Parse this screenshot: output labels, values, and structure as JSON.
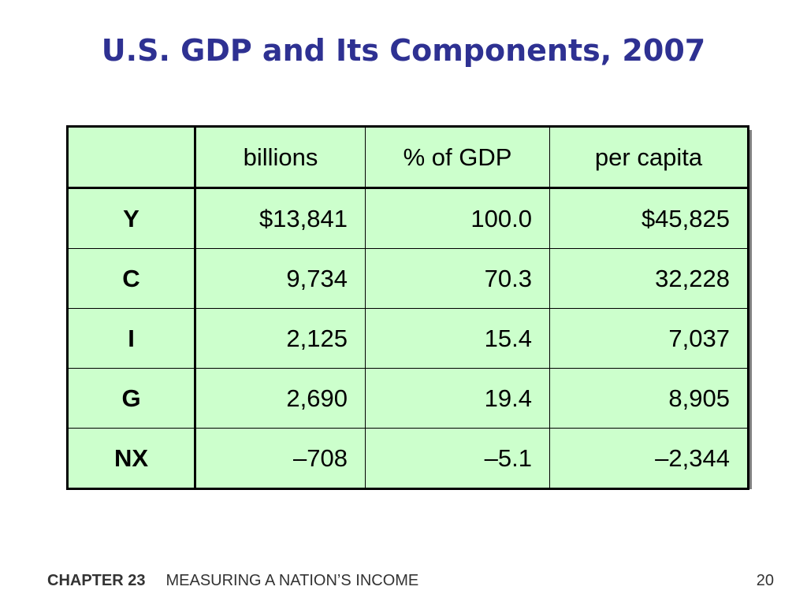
{
  "slide": {
    "title": "U.S. GDP and Its Components, 2007"
  },
  "table": {
    "headers": [
      "",
      "billions",
      "% of GDP",
      "per capita"
    ],
    "rows": [
      {
        "label": "Y",
        "billions": "$13,841",
        "pct": "100.0",
        "per_capita": "$45,825"
      },
      {
        "label": "C",
        "billions": "9,734",
        "pct": "70.3",
        "per_capita": "32,228"
      },
      {
        "label": "I",
        "billions": "2,125",
        "pct": "15.4",
        "per_capita": "7,037"
      },
      {
        "label": "G",
        "billions": "2,690",
        "pct": "19.4",
        "per_capita": "8,905"
      },
      {
        "label": "NX",
        "billions": "–708",
        "pct": "–5.1",
        "per_capita": "–2,344"
      }
    ],
    "colors": {
      "cell_bg": "#ccffcc",
      "border": "#000000",
      "shadow": "#7f7f7f"
    }
  },
  "footer": {
    "chapter": "CHAPTER 23",
    "subject": "MEASURING A NATION’S INCOME",
    "page": "20"
  },
  "colors": {
    "title": "#2e3192",
    "footer": "#333333"
  }
}
